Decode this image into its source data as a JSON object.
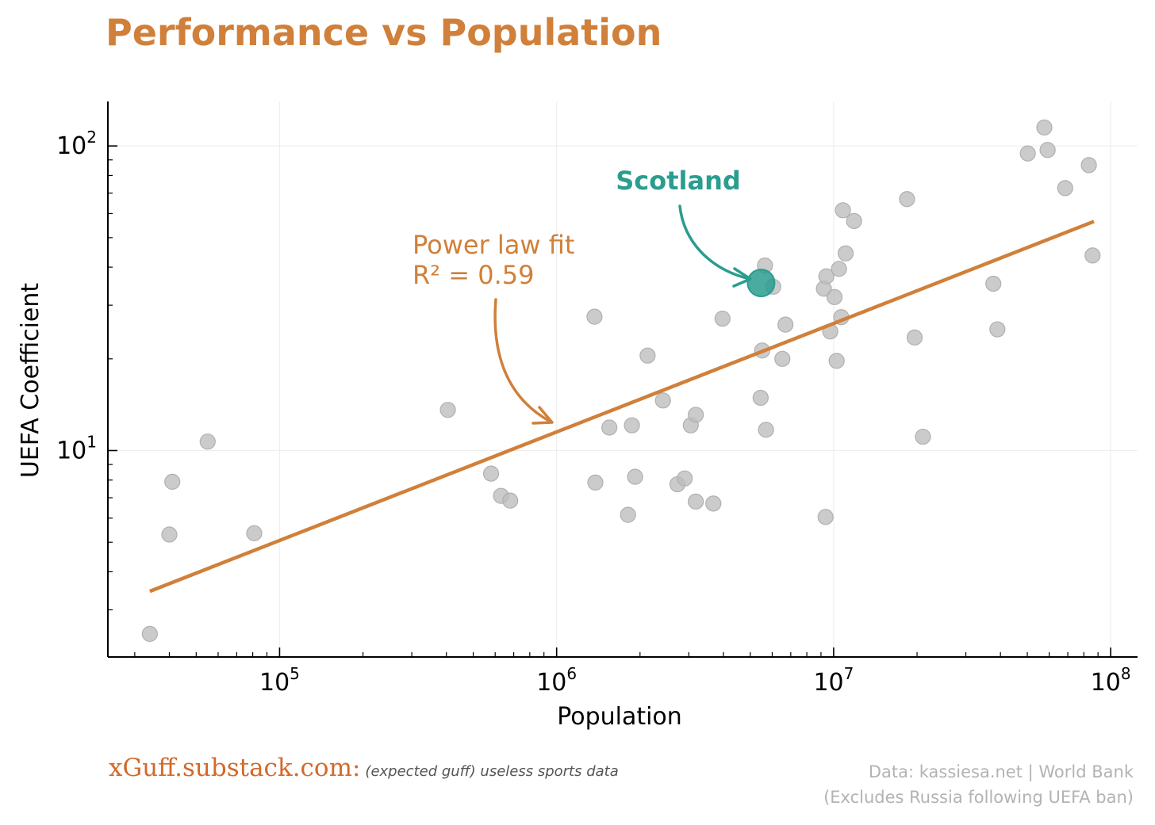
{
  "chart_data": {
    "type": "scatter",
    "title": "Performance vs Population",
    "xlabel": "Population",
    "ylabel": "UEFA Coefficient",
    "xscale": "log",
    "yscale": "log",
    "xlim": [
      24000,
      125000000
    ],
    "ylim": [
      2.1,
      140
    ],
    "grid": true,
    "x_ticks": [
      {
        "base": "10",
        "exp": "5",
        "value": 100000
      },
      {
        "base": "10",
        "exp": "6",
        "value": 1000000
      },
      {
        "base": "10",
        "exp": "7",
        "value": 10000000
      },
      {
        "base": "10",
        "exp": "8",
        "value": 100000000
      }
    ],
    "y_ticks": [
      {
        "base": "10",
        "exp": "1",
        "value": 10
      },
      {
        "base": "10",
        "exp": "2",
        "value": 100
      }
    ],
    "points": [
      {
        "x": 34000,
        "y": 2.5
      },
      {
        "x": 40000,
        "y": 5.3
      },
      {
        "x": 41000,
        "y": 7.9
      },
      {
        "x": 55000,
        "y": 10.7
      },
      {
        "x": 81000,
        "y": 5.35
      },
      {
        "x": 405000,
        "y": 13.6
      },
      {
        "x": 580000,
        "y": 8.4
      },
      {
        "x": 630000,
        "y": 7.1
      },
      {
        "x": 680000,
        "y": 6.85
      },
      {
        "x": 1370000,
        "y": 27.5
      },
      {
        "x": 1380000,
        "y": 7.85
      },
      {
        "x": 1550000,
        "y": 11.9
      },
      {
        "x": 1810000,
        "y": 6.15
      },
      {
        "x": 1870000,
        "y": 12.1
      },
      {
        "x": 1920000,
        "y": 8.2
      },
      {
        "x": 2130000,
        "y": 20.5
      },
      {
        "x": 2420000,
        "y": 14.6
      },
      {
        "x": 2730000,
        "y": 7.75
      },
      {
        "x": 2900000,
        "y": 8.1
      },
      {
        "x": 3050000,
        "y": 12.1
      },
      {
        "x": 3180000,
        "y": 13.1
      },
      {
        "x": 3180000,
        "y": 6.8
      },
      {
        "x": 3680000,
        "y": 6.7
      },
      {
        "x": 3970000,
        "y": 27.1
      },
      {
        "x": 5450000,
        "y": 14.9
      },
      {
        "x": 5520000,
        "y": 21.3
      },
      {
        "x": 5650000,
        "y": 40.5
      },
      {
        "x": 5700000,
        "y": 11.7
      },
      {
        "x": 6050000,
        "y": 34.5
      },
      {
        "x": 6530000,
        "y": 20.0
      },
      {
        "x": 6700000,
        "y": 25.9
      },
      {
        "x": 9220000,
        "y": 34.0
      },
      {
        "x": 9350000,
        "y": 6.05
      },
      {
        "x": 9410000,
        "y": 37.3
      },
      {
        "x": 9720000,
        "y": 24.6
      },
      {
        "x": 10070000,
        "y": 31.9
      },
      {
        "x": 10250000,
        "y": 19.7
      },
      {
        "x": 10450000,
        "y": 39.5
      },
      {
        "x": 10650000,
        "y": 27.4
      },
      {
        "x": 10800000,
        "y": 61.5
      },
      {
        "x": 11050000,
        "y": 44.4
      },
      {
        "x": 11850000,
        "y": 56.7
      },
      {
        "x": 18400000,
        "y": 66.9
      },
      {
        "x": 19600000,
        "y": 23.5
      },
      {
        "x": 21000000,
        "y": 11.1
      },
      {
        "x": 37700000,
        "y": 35.3
      },
      {
        "x": 39000000,
        "y": 25.0
      },
      {
        "x": 50200000,
        "y": 94.5
      },
      {
        "x": 57600000,
        "y": 115.0
      },
      {
        "x": 59200000,
        "y": 97.0
      },
      {
        "x": 68500000,
        "y": 72.7
      },
      {
        "x": 83400000,
        "y": 86.5
      },
      {
        "x": 86000000,
        "y": 43.7
      }
    ],
    "fit_line": {
      "x": [
        34000,
        87000000
      ],
      "y": [
        3.45,
        56.5
      ]
    },
    "highlight": {
      "label": "Scotland",
      "x": 5470000,
      "y": 35.5
    },
    "fit_annotation": [
      "Power law fit",
      "R² = 0.59"
    ],
    "colors": {
      "title": "#d0803a",
      "fit": "#d0803a",
      "points": "#bdbdbd",
      "highlight": "#2a9d8f",
      "axis": "#000000",
      "grid": "#eeeeee"
    }
  },
  "footer": {
    "brand": "xGuff.substack.com:",
    "tagline": "(expected guff) useless sports data",
    "source": "Data: kassiesa.net | World Bank",
    "note": "(Excludes Russia following UEFA ban)"
  }
}
